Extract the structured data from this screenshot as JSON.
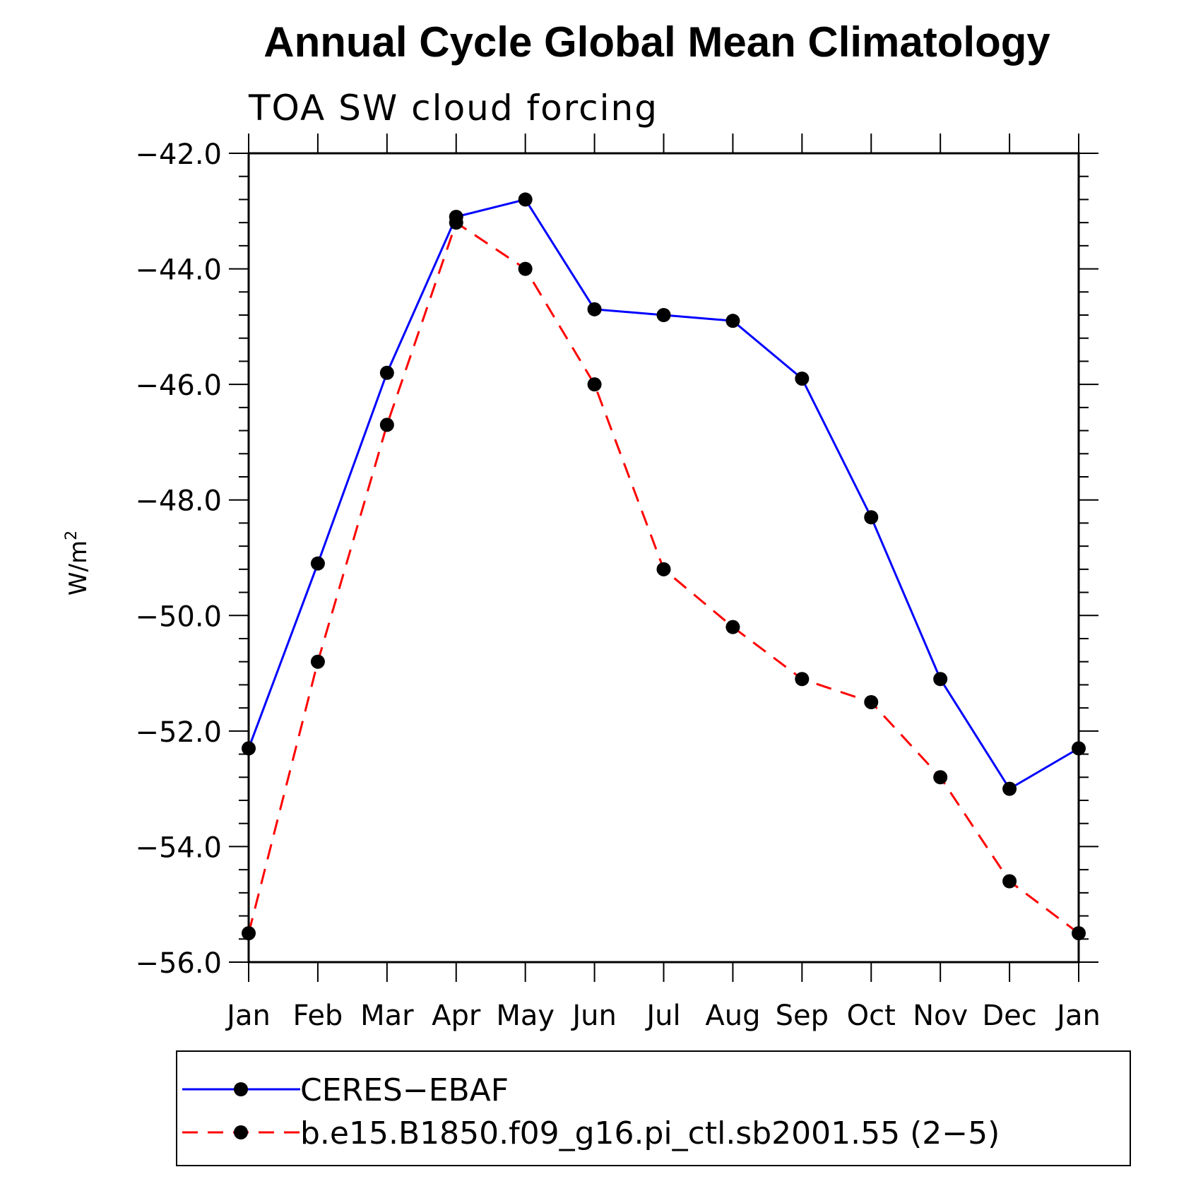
{
  "chart_data": {
    "type": "line",
    "title": "Annual Cycle Global Mean Climatology",
    "subtitle": "TOA SW cloud forcing",
    "ylabel": "W/m",
    "ylabel_sup": "2",
    "xlabel": "",
    "ylim": [
      -56.0,
      -42.0
    ],
    "yticks": [
      -42.0,
      -44.0,
      -46.0,
      -48.0,
      -50.0,
      -52.0,
      -54.0,
      -56.0
    ],
    "ytick_labels": [
      "−42.0",
      "−44.0",
      "−46.0",
      "−48.0",
      "−50.0",
      "−52.0",
      "−54.0",
      "−56.0"
    ],
    "categories": [
      "Jan",
      "Feb",
      "Mar",
      "Apr",
      "May",
      "Jun",
      "Jul",
      "Aug",
      "Sep",
      "Oct",
      "Nov",
      "Dec",
      "Jan"
    ],
    "grid": false,
    "legend_position": "bottom",
    "series": [
      {
        "name": "CERES−EBAF",
        "color": "#0000ff",
        "dash": "solid",
        "values": [
          -52.3,
          -49.1,
          -45.8,
          -43.1,
          -42.8,
          -44.7,
          -44.8,
          -44.9,
          -45.9,
          -48.3,
          -51.1,
          -53.0,
          -52.3
        ]
      },
      {
        "name": "b.e15.B1850.f09_g16.pi_ctl.sb2001.55 (2−5)",
        "color": "#ff0000",
        "dash": "dashed",
        "values": [
          -55.5,
          -50.8,
          -46.7,
          -43.2,
          -44.0,
          -46.0,
          -49.2,
          -50.2,
          -51.1,
          -51.5,
          -52.8,
          -54.6,
          -55.5
        ]
      }
    ]
  }
}
